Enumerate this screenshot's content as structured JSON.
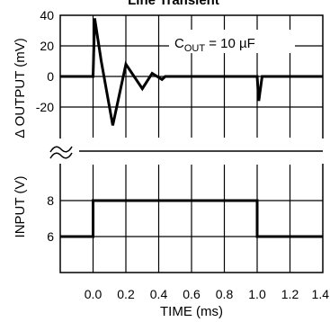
{
  "chart_data": {
    "type": "line",
    "title": "Line Transient",
    "annotation": {
      "main": "C",
      "sub": "OUT",
      "rest": " = 10 µF"
    },
    "x": {
      "label": "TIME (ms)",
      "range": [
        -0.2,
        1.4
      ],
      "ticks": [
        0.0,
        0.2,
        0.4,
        0.6,
        0.8,
        1.0,
        1.2,
        1.4
      ],
      "tick_labels": [
        "0.0",
        "0.2",
        "0.4",
        "0.6",
        "0.8",
        "1.0",
        "1.2",
        "1.4"
      ]
    },
    "panels": [
      {
        "name": "output",
        "ylabel": "Δ OUTPUT (mV)",
        "yrange": [
          -40,
          40
        ],
        "yticks": [
          40,
          20,
          0,
          -20
        ],
        "ytick_labels": [
          "40",
          "20",
          "0",
          "-20"
        ],
        "points": [
          [
            -0.2,
            0
          ],
          [
            0.0,
            0
          ],
          [
            0.01,
            38
          ],
          [
            0.05,
            10
          ],
          [
            0.12,
            -32
          ],
          [
            0.2,
            8
          ],
          [
            0.3,
            -8
          ],
          [
            0.36,
            2
          ],
          [
            0.42,
            -2
          ],
          [
            0.44,
            0
          ],
          [
            0.98,
            0
          ],
          [
            1.0,
            0
          ],
          [
            1.01,
            -16
          ],
          [
            1.03,
            0
          ],
          [
            1.4,
            0
          ]
        ]
      },
      {
        "name": "input",
        "ylabel": "INPUT (V)",
        "yrange": [
          4,
          10
        ],
        "yticks": [
          8,
          6
        ],
        "ytick_labels": [
          "8",
          "6"
        ],
        "points": [
          [
            -0.2,
            6
          ],
          [
            0.0,
            6
          ],
          [
            0.0,
            8
          ],
          [
            1.0,
            8
          ],
          [
            1.0,
            6
          ],
          [
            1.4,
            6
          ]
        ]
      }
    ],
    "grid": true
  }
}
